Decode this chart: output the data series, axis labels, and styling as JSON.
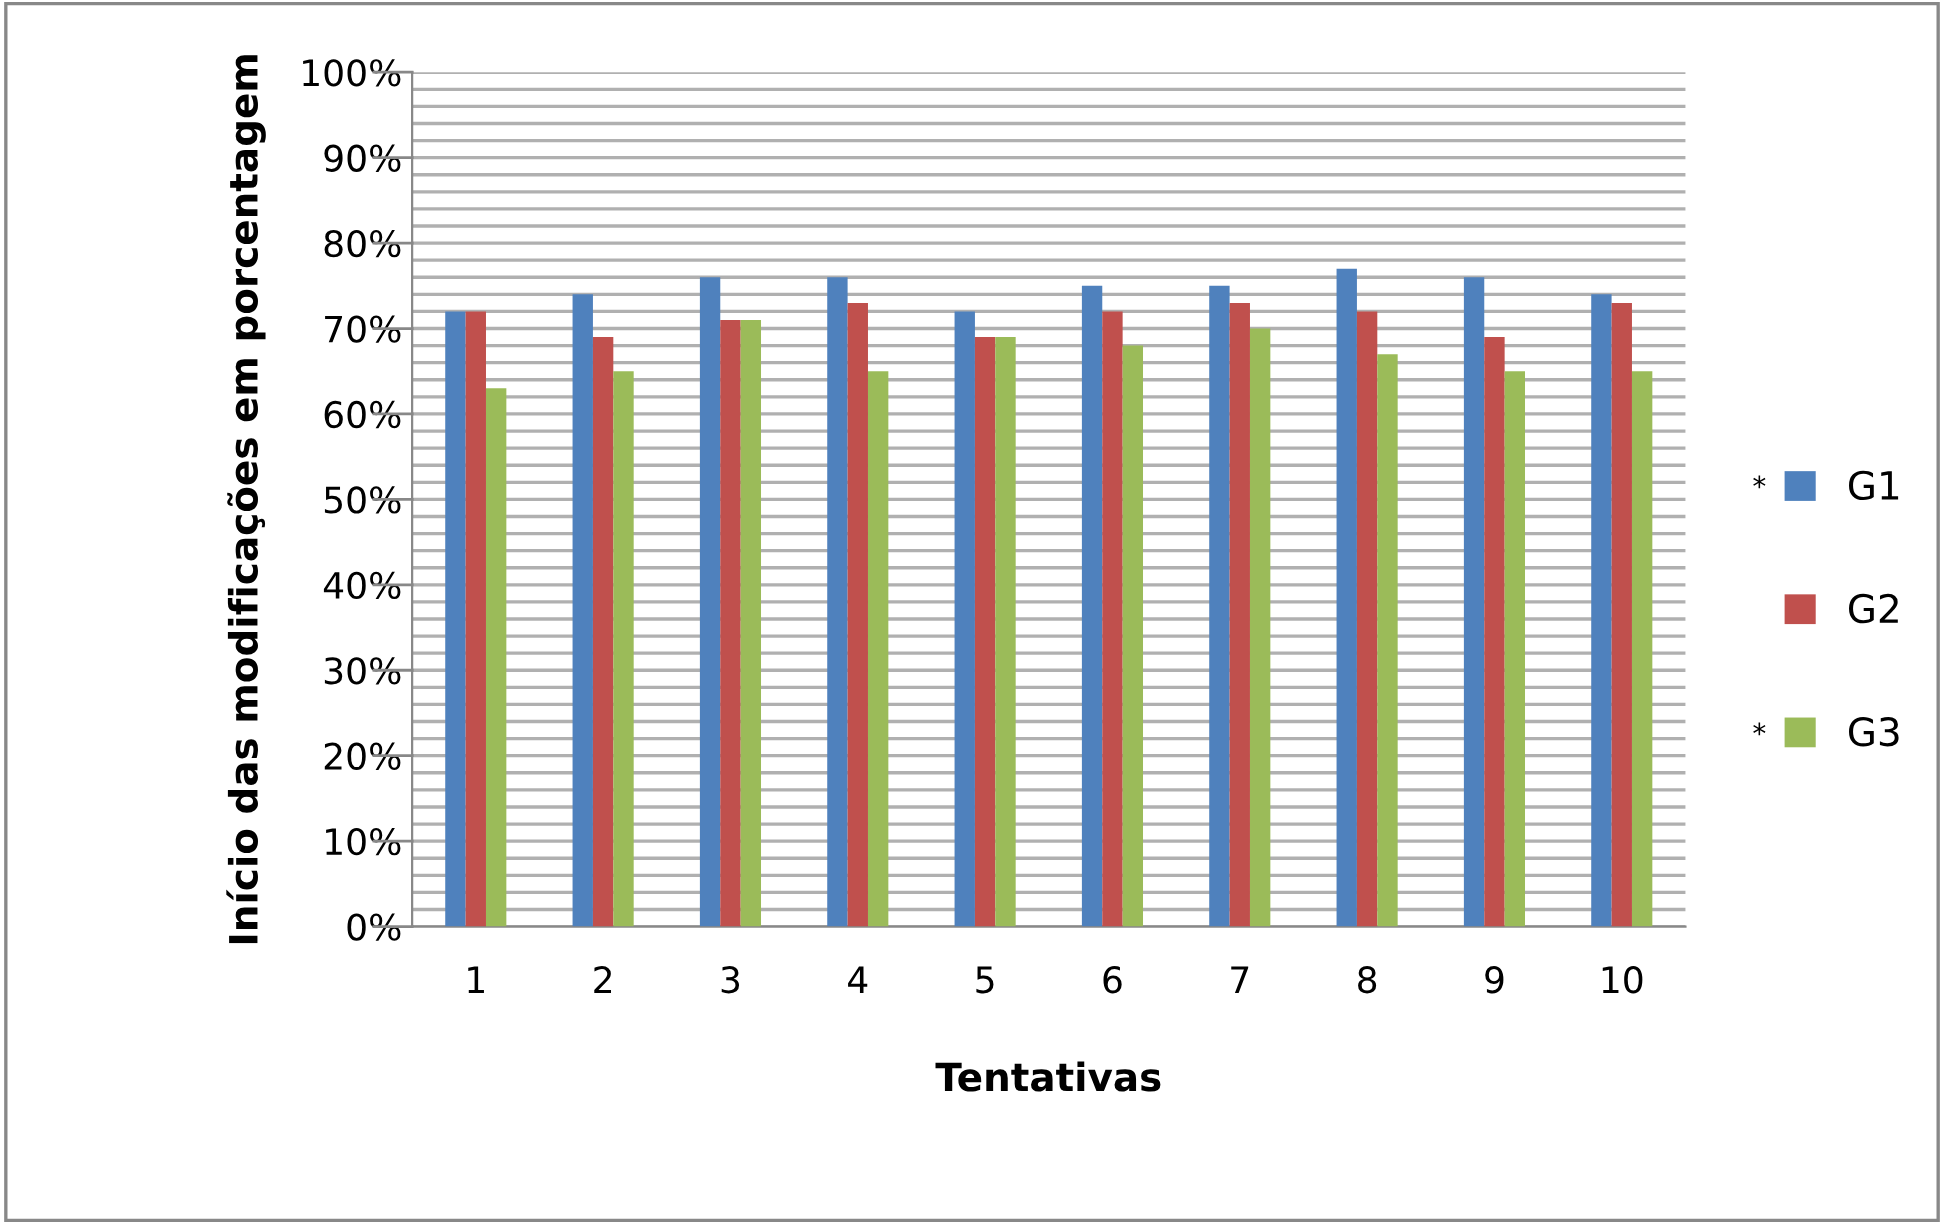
{
  "chart_data": {
    "type": "bar",
    "xlabel": "Tentativas",
    "ylabel": "Início das modificações em porcentagem",
    "categories": [
      "1",
      "2",
      "3",
      "4",
      "5",
      "6",
      "7",
      "8",
      "9",
      "10"
    ],
    "series": [
      {
        "name": "G1",
        "color": "#4f81bd",
        "values": [
          72,
          74,
          76,
          76,
          72,
          75,
          75,
          77,
          76,
          74
        ]
      },
      {
        "name": "G2",
        "color": "#c0504d",
        "values": [
          72,
          69,
          71,
          73,
          69,
          72,
          73,
          72,
          69,
          73
        ]
      },
      {
        "name": "G3",
        "color": "#9bbb59",
        "values": [
          63,
          65,
          71,
          65,
          69,
          68,
          70,
          67,
          65,
          65
        ]
      }
    ],
    "ylim": [
      0,
      100
    ],
    "yticks": [
      {
        "value": 0,
        "label": "0%"
      },
      {
        "value": 2,
        "label": null
      },
      {
        "value": 4,
        "label": null
      },
      {
        "value": 6,
        "label": null
      },
      {
        "value": 8,
        "label": null
      },
      {
        "value": 10,
        "label": "10%"
      },
      {
        "value": 12,
        "label": null
      },
      {
        "value": 14,
        "label": null
      },
      {
        "value": 16,
        "label": null
      },
      {
        "value": 18,
        "label": null
      },
      {
        "value": 20,
        "label": "20%"
      },
      {
        "value": 22,
        "label": null
      },
      {
        "value": 24,
        "label": null
      },
      {
        "value": 26,
        "label": null
      },
      {
        "value": 28,
        "label": null
      },
      {
        "value": 30,
        "label": "30%"
      },
      {
        "value": 32,
        "label": null
      },
      {
        "value": 34,
        "label": null
      },
      {
        "value": 36,
        "label": null
      },
      {
        "value": 38,
        "label": null
      },
      {
        "value": 40,
        "label": "40%"
      },
      {
        "value": 42,
        "label": null
      },
      {
        "value": 44,
        "label": null
      },
      {
        "value": 46,
        "label": null
      },
      {
        "value": 48,
        "label": null
      },
      {
        "value": 50,
        "label": "50%"
      },
      {
        "value": 52,
        "label": null
      },
      {
        "value": 54,
        "label": null
      },
      {
        "value": 56,
        "label": null
      },
      {
        "value": 58,
        "label": null
      },
      {
        "value": 60,
        "label": "60%"
      },
      {
        "value": 62,
        "label": null
      },
      {
        "value": 64,
        "label": null
      },
      {
        "value": 66,
        "label": null
      },
      {
        "value": 68,
        "label": null
      },
      {
        "value": 70,
        "label": "70%"
      },
      {
        "value": 72,
        "label": null
      },
      {
        "value": 74,
        "label": null
      },
      {
        "value": 76,
        "label": null
      },
      {
        "value": 78,
        "label": null
      },
      {
        "value": 80,
        "label": "80%"
      },
      {
        "value": 82,
        "label": null
      },
      {
        "value": 84,
        "label": null
      },
      {
        "value": 86,
        "label": null
      },
      {
        "value": 88,
        "label": null
      },
      {
        "value": 90,
        "label": "90%"
      },
      {
        "value": 92,
        "label": null
      },
      {
        "value": 94,
        "label": null
      },
      {
        "value": 96,
        "label": null
      },
      {
        "value": 98,
        "label": null
      },
      {
        "value": 100,
        "label": "100%"
      }
    ],
    "grid": "y",
    "legend": "right",
    "annotations": [
      "*",
      "*"
    ]
  }
}
